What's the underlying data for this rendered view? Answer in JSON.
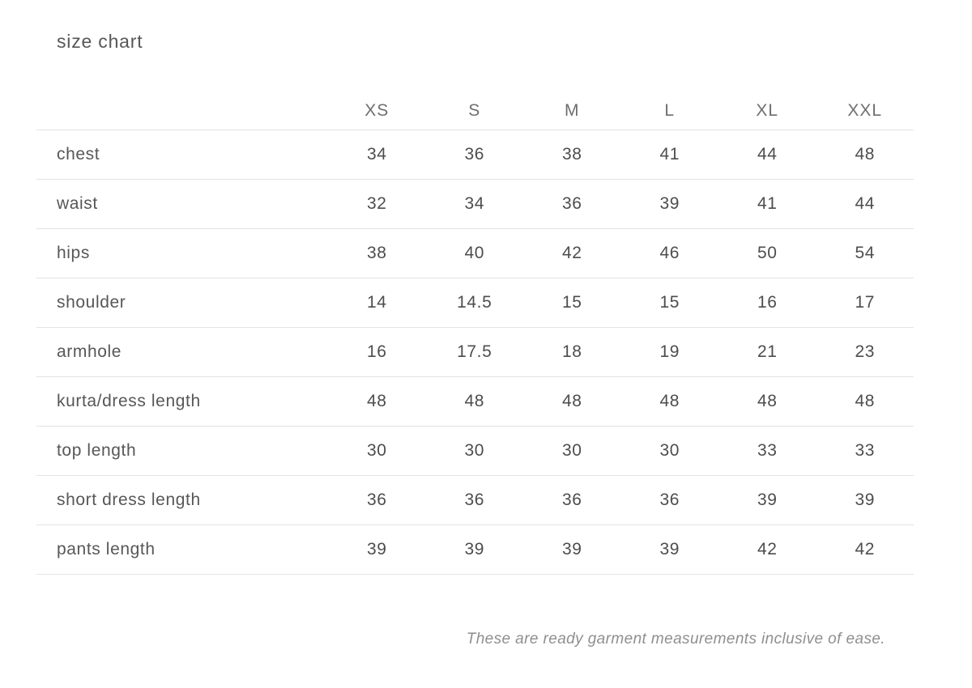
{
  "title": "size chart",
  "chart_data": {
    "type": "table",
    "title": "size chart",
    "columns": [
      "XS",
      "S",
      "M",
      "L",
      "XL",
      "XXL"
    ],
    "rows": [
      {
        "label": "chest",
        "values": [
          "34",
          "36",
          "38",
          "41",
          "44",
          "48"
        ]
      },
      {
        "label": "waist",
        "values": [
          "32",
          "34",
          "36",
          "39",
          "41",
          "44"
        ]
      },
      {
        "label": "hips",
        "values": [
          "38",
          "40",
          "42",
          "46",
          "50",
          "54"
        ]
      },
      {
        "label": "shoulder",
        "values": [
          "14",
          "14.5",
          "15",
          "15",
          "16",
          "17"
        ]
      },
      {
        "label": "armhole",
        "values": [
          "16",
          "17.5",
          "18",
          "19",
          "21",
          "23"
        ]
      },
      {
        "label": "kurta/dress length",
        "values": [
          "48",
          "48",
          "48",
          "48",
          "48",
          "48"
        ]
      },
      {
        "label": "top length",
        "values": [
          "30",
          "30",
          "30",
          "30",
          "33",
          "33"
        ]
      },
      {
        "label": "short dress length",
        "values": [
          "36",
          "36",
          "36",
          "36",
          "39",
          "39"
        ]
      },
      {
        "label": "pants length",
        "values": [
          "39",
          "39",
          "39",
          "39",
          "42",
          "42"
        ]
      }
    ],
    "footnote": "These are ready garment measurements inclusive of ease.",
    "legend_position": "none",
    "grid": "horizontal-dividers"
  },
  "note": "These are ready garment measurements inclusive of ease.",
  "colors": {
    "background": "#ffffff",
    "title_text": "#575757",
    "header_text": "#6e6e6e",
    "label_text": "#575757",
    "value_text": "#4d4d4d",
    "divider": "#e3e3e3",
    "note_text": "#8f8f8f"
  }
}
